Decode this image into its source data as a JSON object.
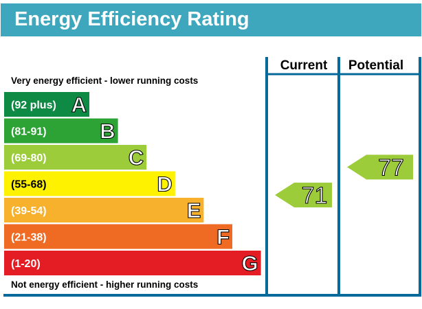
{
  "header": {
    "title": "Energy Efficiency Rating"
  },
  "chart_data": {
    "type": "bar",
    "title": "Energy Efficiency Rating",
    "top_caption": "Very energy efficient - lower running costs",
    "bottom_caption": "Not energy efficient - higher running costs",
    "columns": [
      "Current",
      "Potential"
    ],
    "bands": [
      {
        "range": "(92 plus)",
        "letter": "A",
        "color": "#0e8a45"
      },
      {
        "range": "(81-91)",
        "letter": "B",
        "color": "#2da235"
      },
      {
        "range": "(69-80)",
        "letter": "C",
        "color": "#9dcc3b"
      },
      {
        "range": "(55-68)",
        "letter": "D",
        "color": "#fff200"
      },
      {
        "range": "(39-54)",
        "letter": "E",
        "color": "#f8b12d"
      },
      {
        "range": "(21-38)",
        "letter": "F",
        "color": "#ef6b24"
      },
      {
        "range": "(1-20)",
        "letter": "G",
        "color": "#e31d23"
      }
    ],
    "ratings": [
      {
        "column": "Current",
        "value": 71,
        "band": "C",
        "color": "#9dcc3b"
      },
      {
        "column": "Potential",
        "value": 77,
        "band": "C",
        "color": "#9dcc3b"
      }
    ],
    "frame_color": "#046a9b"
  }
}
